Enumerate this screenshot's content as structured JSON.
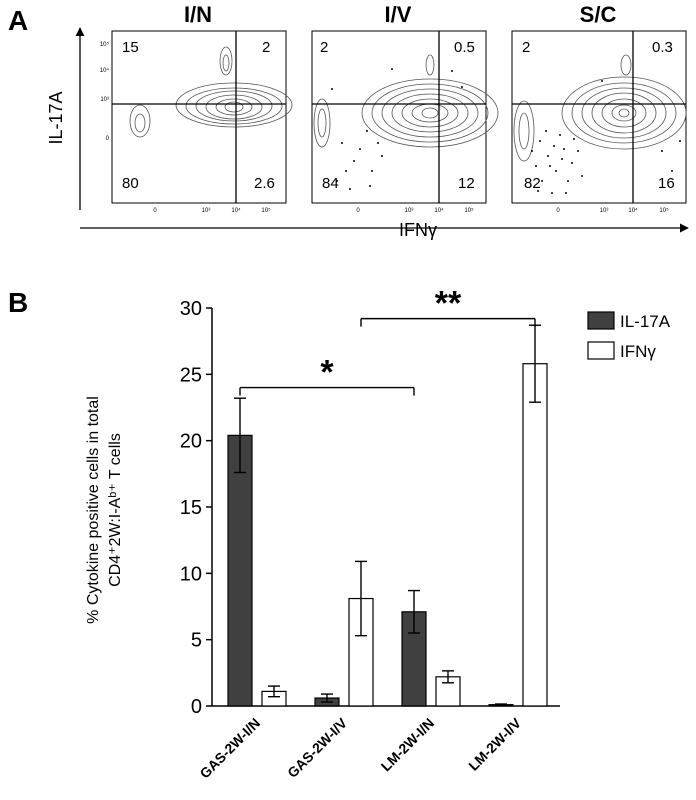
{
  "panel_a": {
    "letter": "A",
    "y_axis_label": "IL-17A",
    "x_axis_label": "IFNγ",
    "y_tick_labels": [
      "10⁵",
      "10⁴",
      "10³",
      "0"
    ],
    "x_tick_labels": [
      "0",
      "10³",
      "10⁴",
      "10⁵"
    ],
    "plots": [
      {
        "title": "I/N",
        "quadrants": {
          "upper_left": "15",
          "upper_right": "2",
          "lower_left": "80",
          "lower_right": "2.6"
        }
      },
      {
        "title": "I/V",
        "quadrants": {
          "upper_left": "2",
          "upper_right": "0.5",
          "lower_left": "84",
          "lower_right": "12"
        }
      },
      {
        "title": "S/C",
        "quadrants": {
          "upper_left": "2",
          "upper_right": "0.3",
          "lower_left": "82",
          "lower_right": "16"
        }
      }
    ]
  },
  "chart_data": {
    "panel": "B",
    "type": "bar",
    "ylabel_line1": "% Cytokine positive cells in total",
    "ylabel_line2": "CD4⁺2W:I-Aᵇ⁺ T cells",
    "ylim": [
      0,
      30
    ],
    "yticks": [
      0,
      5,
      10,
      15,
      20,
      25,
      30
    ],
    "categories": [
      "GAS-2W-I/N",
      "GAS-2W-I/V",
      "LM-2W-I/N",
      "LM-2W-I/V"
    ],
    "series": [
      {
        "name": "IL-17A",
        "color": "#404040",
        "values": [
          20.4,
          0.6,
          7.1,
          0.1
        ],
        "errors": [
          2.8,
          0.3,
          1.6,
          0.05
        ]
      },
      {
        "name": "IFNγ",
        "color": "#ffffff",
        "values": [
          1.1,
          8.1,
          2.2,
          25.8
        ],
        "errors": [
          0.4,
          2.8,
          0.45,
          2.9
        ]
      }
    ],
    "significance": [
      {
        "label": "*",
        "from_category": 0,
        "to_category": 2
      },
      {
        "label": "**",
        "from_category": 1,
        "to_category": 3
      }
    ],
    "legend_position": "top-right",
    "grid": false
  }
}
